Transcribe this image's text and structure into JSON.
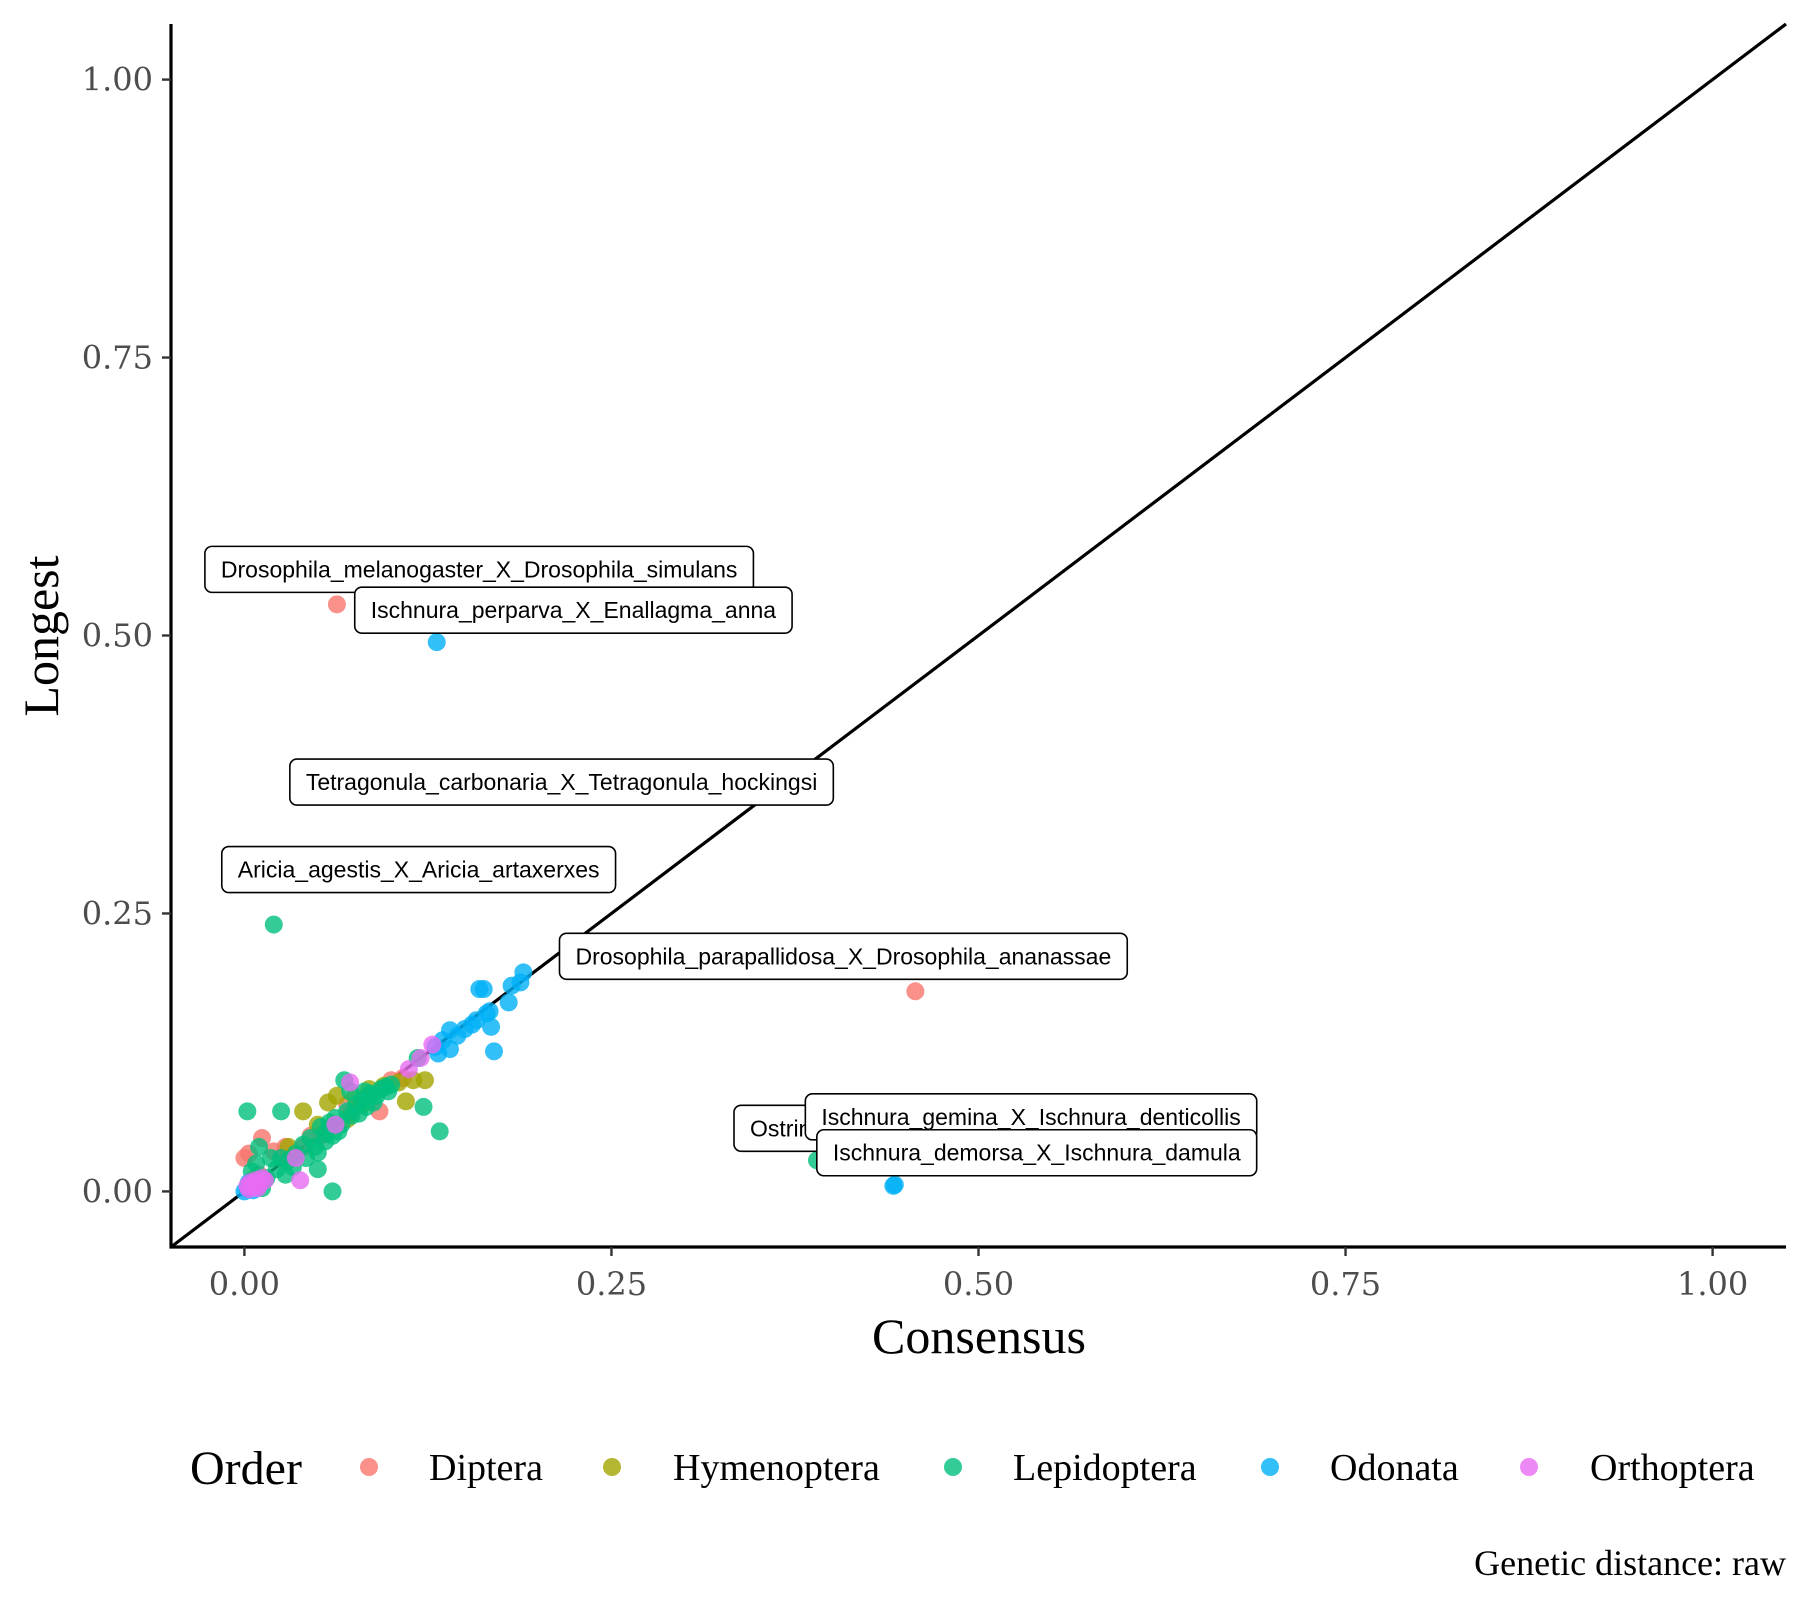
{
  "chart_data": {
    "type": "scatter",
    "title": "",
    "xlabel": "Consensus",
    "ylabel": "Longest",
    "xlim": [
      -0.05,
      1.05
    ],
    "ylim": [
      -0.05,
      1.05
    ],
    "x_ticks": [
      0,
      0.25,
      0.5,
      0.75,
      1
    ],
    "x_tick_labels": [
      "0.00",
      "0.25",
      "0.50",
      "0.75",
      "1.00"
    ],
    "y_ticks": [
      0,
      0.25,
      0.5,
      0.75,
      1
    ],
    "y_tick_labels": [
      "0.00",
      "0.25",
      "0.50",
      "0.75",
      "1.00"
    ],
    "reference_line": {
      "slope": 1,
      "intercept": 0,
      "color": "#000000"
    },
    "grid": false,
    "legend": {
      "title": "Order",
      "position": "bottom",
      "entries": [
        {
          "name": "Diptera",
          "color": "#F8766D"
        },
        {
          "name": "Hymenoptera",
          "color": "#A3A500"
        },
        {
          "name": "Lepidoptera",
          "color": "#00BF7D"
        },
        {
          "name": "Odonata",
          "color": "#00B0F6"
        },
        {
          "name": "Orthoptera",
          "color": "#E76BF3"
        }
      ]
    },
    "caption": "Genetic distance: raw",
    "series": [
      {
        "name": "Diptera",
        "color": "#F8766D",
        "points": [
          [
            0.063,
            0.528
          ],
          [
            0.457,
            0.18
          ],
          [
            0.0,
            0.03
          ],
          [
            0.003,
            0.034
          ],
          [
            0.012,
            0.048
          ],
          [
            0.02,
            0.036
          ],
          [
            0.028,
            0.04
          ],
          [
            0.04,
            0.04
          ],
          [
            0.052,
            0.05
          ],
          [
            0.062,
            0.06
          ],
          [
            0.072,
            0.07
          ],
          [
            0.085,
            0.085
          ],
          [
            0.092,
            0.072
          ],
          [
            0.1,
            0.1
          ],
          [
            0.108,
            0.102
          ],
          [
            0.005,
            0.01
          ],
          [
            0.01,
            0.015
          ],
          [
            0.03,
            0.03
          ],
          [
            0.045,
            0.05
          ],
          [
            0.07,
            0.078
          ]
        ]
      },
      {
        "name": "Hymenoptera",
        "color": "#A3A500",
        "points": [
          [
            0.065,
            0.28
          ],
          [
            0.04,
            0.072
          ],
          [
            0.057,
            0.08
          ],
          [
            0.063,
            0.086
          ],
          [
            0.075,
            0.085
          ],
          [
            0.085,
            0.092
          ],
          [
            0.095,
            0.095
          ],
          [
            0.105,
            0.098
          ],
          [
            0.11,
            0.081
          ],
          [
            0.115,
            0.1
          ],
          [
            0.123,
            0.1
          ],
          [
            0.05,
            0.06
          ],
          [
            0.03,
            0.04
          ],
          [
            0.07,
            0.065
          ],
          [
            0.08,
            0.078
          ]
        ]
      },
      {
        "name": "Lepidoptera",
        "color": "#00BF7D",
        "points": [
          [
            0.02,
            0.24
          ],
          [
            0.39,
            0.028
          ],
          [
            0.002,
            0.072
          ],
          [
            0.025,
            0.072
          ],
          [
            0.06,
            0.0
          ],
          [
            0.05,
            0.02
          ],
          [
            0.133,
            0.054
          ],
          [
            0.122,
            0.076
          ],
          [
            0.118,
            0.12
          ],
          [
            0.012,
            0.003
          ],
          [
            0.015,
            0.012
          ],
          [
            0.022,
            0.02
          ],
          [
            0.03,
            0.028
          ],
          [
            0.035,
            0.034
          ],
          [
            0.04,
            0.042
          ],
          [
            0.045,
            0.048
          ],
          [
            0.048,
            0.04
          ],
          [
            0.052,
            0.058
          ],
          [
            0.055,
            0.052
          ],
          [
            0.058,
            0.062
          ],
          [
            0.062,
            0.066
          ],
          [
            0.066,
            0.06
          ],
          [
            0.07,
            0.072
          ],
          [
            0.073,
            0.068
          ],
          [
            0.076,
            0.078
          ],
          [
            0.08,
            0.082
          ],
          [
            0.083,
            0.076
          ],
          [
            0.086,
            0.088
          ],
          [
            0.09,
            0.086
          ],
          [
            0.093,
            0.092
          ],
          [
            0.096,
            0.094
          ],
          [
            0.1,
            0.096
          ],
          [
            0.068,
            0.1
          ],
          [
            0.072,
            0.09
          ],
          [
            0.078,
            0.07
          ],
          [
            0.01,
            0.04
          ],
          [
            0.018,
            0.03
          ],
          [
            0.025,
            0.03
          ],
          [
            0.005,
            0.018
          ],
          [
            0.008,
            0.025
          ],
          [
            0.028,
            0.015
          ],
          [
            0.033,
            0.022
          ],
          [
            0.042,
            0.03
          ],
          [
            0.055,
            0.045
          ],
          [
            0.064,
            0.054
          ],
          [
            0.088,
            0.08
          ],
          [
            0.082,
            0.09
          ],
          [
            0.098,
            0.09
          ],
          [
            0.06,
            0.05
          ],
          [
            0.05,
            0.035
          ]
        ]
      },
      {
        "name": "Odonata",
        "color": "#00B0F6",
        "points": [
          [
            0.131,
            0.494
          ],
          [
            0.442,
            0.005
          ],
          [
            0.443,
            0.006
          ],
          [
            0.19,
            0.197
          ],
          [
            0.188,
            0.188
          ],
          [
            0.182,
            0.185
          ],
          [
            0.18,
            0.17
          ],
          [
            0.17,
            0.126
          ],
          [
            0.168,
            0.148
          ],
          [
            0.165,
            0.16
          ],
          [
            0.16,
            0.182
          ],
          [
            0.163,
            0.182
          ],
          [
            0.155,
            0.15
          ],
          [
            0.15,
            0.146
          ],
          [
            0.145,
            0.14
          ],
          [
            0.14,
            0.145
          ],
          [
            0.14,
            0.128
          ],
          [
            0.135,
            0.136
          ],
          [
            0.132,
            0.124
          ],
          [
            0.13,
            0.13
          ],
          [
            0.167,
            0.162
          ],
          [
            0.158,
            0.154
          ],
          [
            0.0,
            0.0
          ],
          [
            0.002,
            0.002
          ],
          [
            0.004,
            0.004
          ],
          [
            0.006,
            0.001
          ],
          [
            0.003,
            0.008
          ]
        ]
      },
      {
        "name": "Orthoptera",
        "color": "#E76BF3",
        "points": [
          [
            0.128,
            0.132
          ],
          [
            0.12,
            0.12
          ],
          [
            0.112,
            0.11
          ],
          [
            0.072,
            0.098
          ],
          [
            0.062,
            0.06
          ],
          [
            0.035,
            0.03
          ],
          [
            0.038,
            0.01
          ],
          [
            0.002,
            0.005
          ],
          [
            0.004,
            0.008
          ],
          [
            0.006,
            0.004
          ],
          [
            0.008,
            0.01
          ],
          [
            0.01,
            0.006
          ],
          [
            0.012,
            0.012
          ],
          [
            0.014,
            0.01
          ],
          [
            0.003,
            0.002
          ],
          [
            0.007,
            0.007
          ],
          [
            0.009,
            0.003
          ]
        ]
      }
    ],
    "annotations": [
      {
        "text": "Drosophila_melanogaster_X_Drosophila_simulans",
        "x": 0.063,
        "y": 0.528,
        "anchor": "left-above"
      },
      {
        "text": "Ischnura_perparva_X_Enallagma_anna",
        "x": 0.131,
        "y": 0.494,
        "anchor": "left-above"
      },
      {
        "text": "Tetragonula_carbonaria_X_Tetragonula_hockingsi",
        "x": 0.065,
        "y": 0.28,
        "anchor": "left-above"
      },
      {
        "text": "Aricia_agestis_X_Aricia_artaxerxes",
        "x": 0.02,
        "y": 0.24,
        "anchor": "left-above"
      },
      {
        "text": "Drosophila_parapallidosa_X_Drosophila_ananassae",
        "x": 0.457,
        "y": 0.18,
        "anchor": "center-above"
      },
      {
        "text": "Ostrinia",
        "x": 0.39,
        "y": 0.028,
        "anchor": "left-above"
      },
      {
        "text": "Ischnura_gemina_X_Ischnura_denticollis",
        "x": 0.442,
        "y": 0.005,
        "anchor": "above-high"
      },
      {
        "text": "Ischnura_demorsa_X_Ischnura_damula",
        "x": 0.443,
        "y": 0.006,
        "anchor": "above-low"
      }
    ]
  }
}
